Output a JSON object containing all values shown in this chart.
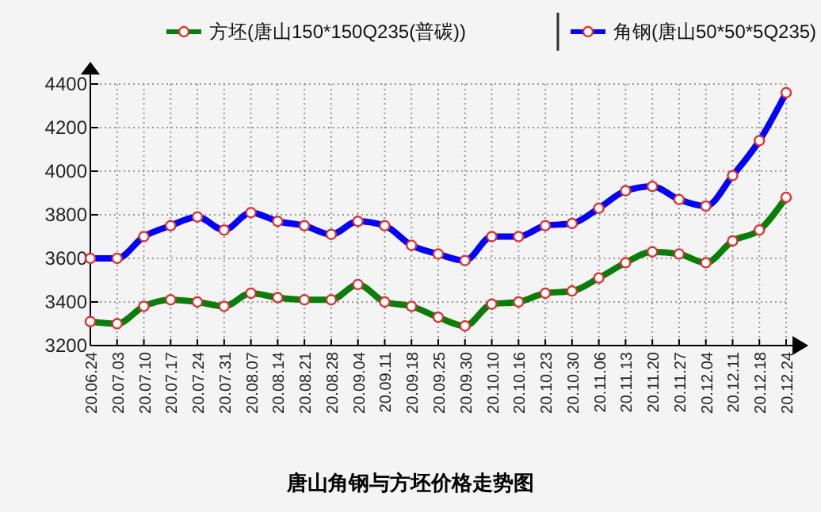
{
  "chart_data": {
    "type": "line",
    "title": "唐山角钢与方坯价格走势图",
    "categories": [
      "20.06.24",
      "20.07.03",
      "20.07.10",
      "20.07.17",
      "20.07.24",
      "20.07.31",
      "20.08.07",
      "20.08.14",
      "20.08.21",
      "20.08.28",
      "20.09.04",
      "20.09.11",
      "20.09.18",
      "20.09.25",
      "20.09.30",
      "20.10.10",
      "20.10.16",
      "20.10.23",
      "20.10.30",
      "20.11.06",
      "20.11.13",
      "20.11.20",
      "20.11.27",
      "20.12.04",
      "20.12.11",
      "20.12.18",
      "20.12.24"
    ],
    "series": [
      {
        "name": "方坯(唐山150*150Q235(普碳))",
        "color": "#0a7d0a",
        "values": [
          3310,
          3300,
          3380,
          3410,
          3400,
          3380,
          3440,
          3420,
          3410,
          3410,
          3480,
          3400,
          3380,
          3330,
          3290,
          3390,
          3400,
          3440,
          3450,
          3510,
          3580,
          3630,
          3620,
          3580,
          3680,
          3730,
          3880
        ]
      },
      {
        "name": "角钢(唐山50*50*5Q235)",
        "color": "#0000ff",
        "values": [
          3600,
          3600,
          3700,
          3750,
          3790,
          3730,
          3810,
          3770,
          3750,
          3710,
          3770,
          3750,
          3660,
          3620,
          3590,
          3700,
          3700,
          3750,
          3760,
          3830,
          3910,
          3930,
          3870,
          3840,
          3980,
          4140,
          4360
        ]
      }
    ],
    "ylim": [
      3200,
      4400
    ],
    "yticks": [
      3200,
      3400,
      3600,
      3800,
      4000,
      4200,
      4400
    ],
    "grid": true,
    "legend": "top",
    "marker": "circle",
    "line_style": "solid"
  }
}
